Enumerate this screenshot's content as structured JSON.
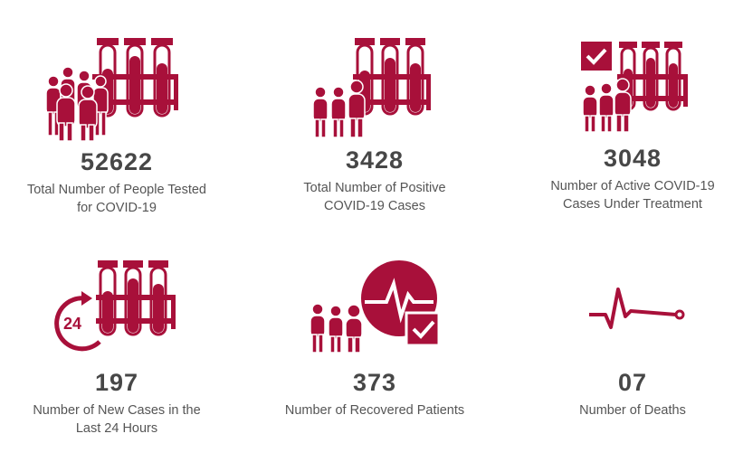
{
  "accent_color": "#a8103a",
  "stats": [
    {
      "value": "52622",
      "label_line1": "Total Number of People Tested",
      "label_line2": "for COVID-19",
      "icon": "people-test-tubes-icon"
    },
    {
      "value": "3428",
      "label_line1": "Total Number of Positive",
      "label_line2": "COVID-19 Cases",
      "icon": "people-test-tubes-icon"
    },
    {
      "value": "3048",
      "label_line1": "Number of Active COVID-19",
      "label_line2": "Cases Under Treatment",
      "icon": "checkbox-people-test-tubes-icon"
    },
    {
      "value": "197",
      "label_line1": "Number of New Cases in the",
      "label_line2": "Last 24 Hours",
      "icon": "24-hours-test-tubes-icon"
    },
    {
      "value": "373",
      "label_line1": "Number of Recovered Patients",
      "label_line2": "",
      "icon": "recovered-heartbeat-icon"
    },
    {
      "value": "07",
      "label_line1": "Number of Deaths",
      "label_line2": "",
      "icon": "flatline-pulse-icon"
    }
  ]
}
